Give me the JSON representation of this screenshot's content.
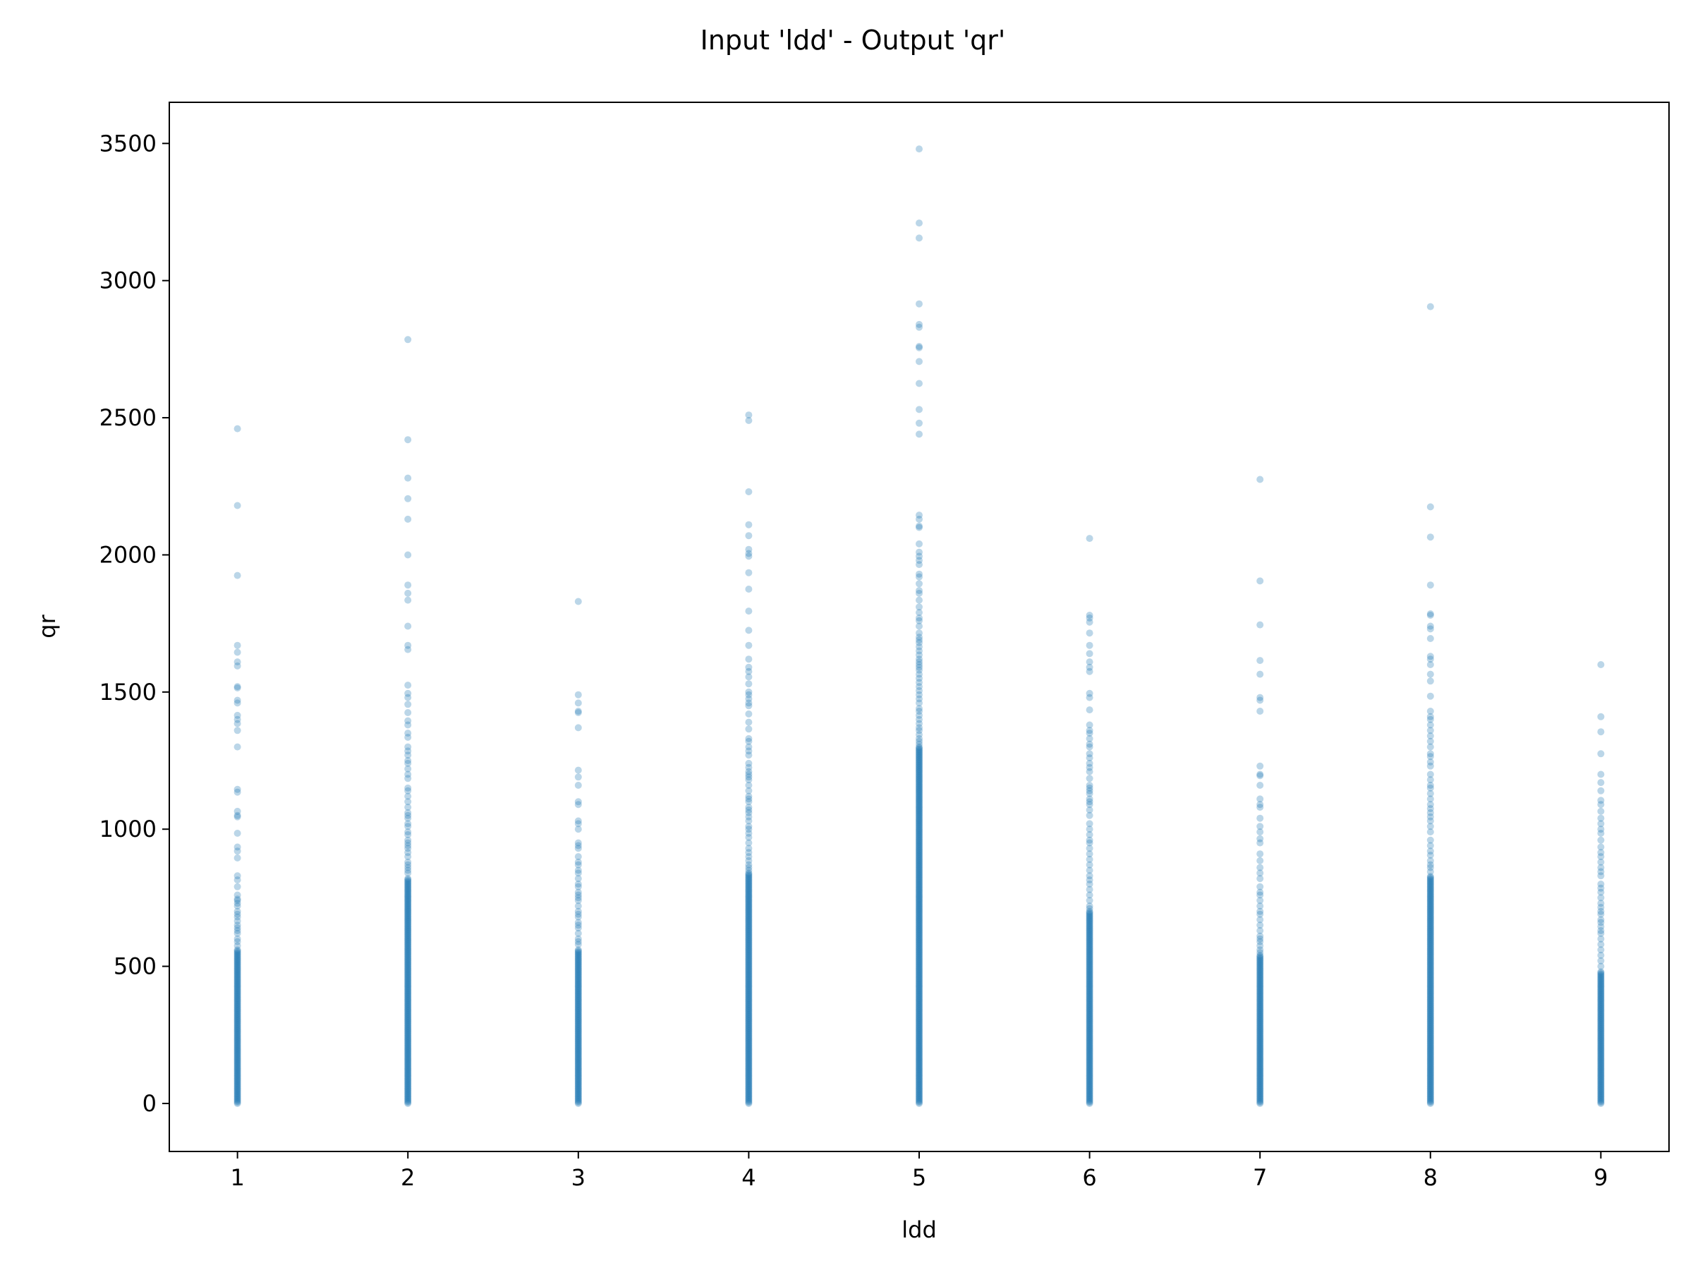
{
  "chart_data": {
    "type": "scatter",
    "title": "Input 'ldd' - Output 'qr'",
    "xlabel": "ldd",
    "ylabel": "qr",
    "xlim": [
      0.6,
      9.4
    ],
    "ylim": [
      -175,
      3650
    ],
    "x_ticks": [
      1,
      2,
      3,
      4,
      5,
      6,
      7,
      8,
      9
    ],
    "y_ticks": [
      0,
      500,
      1000,
      1500,
      2000,
      2500,
      3000,
      3500
    ],
    "grid": false,
    "legend": "none",
    "point_color": "#1f77b4",
    "point_alpha": 0.3,
    "series": [
      {
        "ldd": 1,
        "dense_max": 560,
        "qr": [
          2460,
          2180,
          1925,
          1670,
          1645,
          1610,
          1595,
          1520,
          1515,
          1470,
          1460,
          1415,
          1400,
          1385,
          1360,
          1300,
          1145,
          1135,
          1065,
          1050,
          1045,
          985,
          935,
          920,
          895,
          830,
          815,
          790,
          760,
          745,
          740,
          730,
          720,
          700,
          690,
          680,
          665,
          650,
          640,
          630,
          620,
          600,
          590,
          575
        ]
      },
      {
        "ldd": 2,
        "dense_max": 820,
        "qr": [
          2785,
          2420,
          2280,
          2205,
          2130,
          2000,
          1890,
          1860,
          1835,
          1740,
          1670,
          1655,
          1525,
          1495,
          1480,
          1455,
          1425,
          1395,
          1380,
          1350,
          1335,
          1300,
          1285,
          1270,
          1250,
          1240,
          1220,
          1200,
          1185,
          1150,
          1140,
          1120,
          1100,
          1080,
          1060,
          1050,
          1040,
          1020,
          1010,
          990,
          980,
          960,
          950,
          940,
          930,
          915,
          900,
          880,
          870,
          860,
          850,
          840
        ]
      },
      {
        "ldd": 3,
        "dense_max": 560,
        "qr": [
          1830,
          1490,
          1460,
          1430,
          1425,
          1370,
          1215,
          1190,
          1160,
          1100,
          1090,
          1030,
          1020,
          1000,
          950,
          940,
          930,
          900,
          880,
          870,
          850,
          840,
          820,
          800,
          790,
          770,
          760,
          750,
          740,
          720,
          700,
          690,
          680,
          660,
          650,
          640,
          620,
          600,
          590,
          580
        ]
      },
      {
        "ldd": 4,
        "dense_max": 840,
        "qr": [
          2510,
          2490,
          2230,
          2110,
          2070,
          2020,
          2005,
          1995,
          1935,
          1875,
          1795,
          1725,
          1670,
          1620,
          1590,
          1575,
          1555,
          1530,
          1500,
          1490,
          1475,
          1460,
          1450,
          1420,
          1390,
          1365,
          1330,
          1320,
          1300,
          1285,
          1270,
          1240,
          1225,
          1210,
          1200,
          1190,
          1180,
          1160,
          1140,
          1120,
          1110,
          1100,
          1080,
          1070,
          1060,
          1045,
          1030,
          1010,
          1000,
          985,
          970,
          950,
          930,
          915,
          900,
          885,
          870,
          860,
          850
        ]
      },
      {
        "ldd": 5,
        "dense_max": 1300,
        "qr": [
          3480,
          3210,
          3155,
          2915,
          2840,
          2830,
          2760,
          2755,
          2705,
          2625,
          2530,
          2480,
          2440,
          2145,
          2130,
          2105,
          2100,
          2040,
          2010,
          1995,
          1980,
          1965,
          1930,
          1920,
          1895,
          1870,
          1860,
          1835,
          1810,
          1790,
          1770,
          1760,
          1740,
          1715,
          1700,
          1690,
          1680,
          1665,
          1650,
          1635,
          1620,
          1610,
          1600,
          1590,
          1580,
          1565,
          1550,
          1535,
          1520,
          1505,
          1490,
          1475,
          1460,
          1440,
          1430,
          1415,
          1400,
          1385,
          1370,
          1360,
          1345,
          1330,
          1320,
          1310
        ]
      },
      {
        "ldd": 6,
        "dense_max": 700,
        "qr": [
          2060,
          1780,
          1770,
          1755,
          1715,
          1670,
          1640,
          1610,
          1590,
          1575,
          1495,
          1480,
          1435,
          1380,
          1360,
          1350,
          1330,
          1310,
          1300,
          1275,
          1260,
          1240,
          1225,
          1210,
          1185,
          1160,
          1150,
          1140,
          1130,
          1110,
          1100,
          1090,
          1070,
          1050,
          1020,
          1000,
          980,
          960,
          950,
          930,
          910,
          890,
          870,
          850,
          830,
          815,
          800,
          780,
          760,
          740,
          720,
          710
        ]
      },
      {
        "ldd": 7,
        "dense_max": 540,
        "qr": [
          2275,
          1905,
          1745,
          1615,
          1565,
          1480,
          1470,
          1430,
          1230,
          1200,
          1195,
          1160,
          1110,
          1090,
          1080,
          1040,
          1010,
          990,
          965,
          950,
          910,
          885,
          860,
          840,
          820,
          790,
          770,
          760,
          740,
          720,
          700,
          690,
          670,
          650,
          630,
          610,
          600,
          590,
          575,
          560,
          550
        ]
      },
      {
        "ldd": 8,
        "dense_max": 830,
        "qr": [
          2905,
          2175,
          2065,
          1890,
          1785,
          1780,
          1740,
          1730,
          1695,
          1630,
          1620,
          1600,
          1565,
          1540,
          1485,
          1430,
          1410,
          1400,
          1380,
          1360,
          1340,
          1320,
          1300,
          1275,
          1265,
          1245,
          1230,
          1200,
          1180,
          1160,
          1150,
          1130,
          1110,
          1090,
          1075,
          1060,
          1045,
          1030,
          1010,
          990,
          960,
          940,
          920,
          905,
          885,
          870,
          860,
          845
        ]
      },
      {
        "ldd": 9,
        "dense_max": 480,
        "qr": [
          1600,
          1410,
          1355,
          1275,
          1200,
          1170,
          1140,
          1105,
          1090,
          1065,
          1040,
          1020,
          1000,
          985,
          960,
          935,
          915,
          900,
          880,
          860,
          845,
          830,
          800,
          785,
          770,
          750,
          730,
          715,
          700,
          690,
          670,
          660,
          645,
          630,
          620,
          600,
          580,
          560,
          540,
          520,
          500
        ]
      }
    ]
  }
}
